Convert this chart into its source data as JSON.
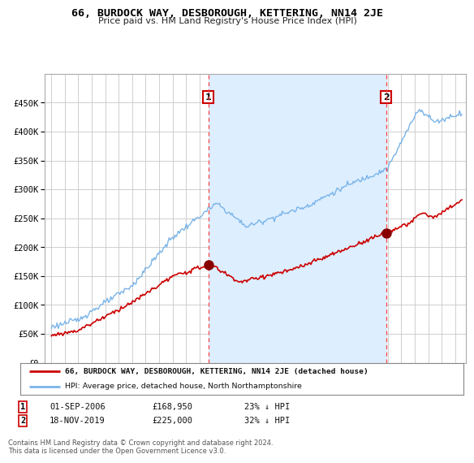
{
  "title": "66, BURDOCK WAY, DESBOROUGH, KETTERING, NN14 2JE",
  "subtitle": "Price paid vs. HM Land Registry's House Price Index (HPI)",
  "footer": "Contains HM Land Registry data © Crown copyright and database right 2024.\nThis data is licensed under the Open Government Licence v3.0.",
  "legend_line1": "66, BURDOCK WAY, DESBOROUGH, KETTERING, NN14 2JE (detached house)",
  "legend_line2": "HPI: Average price, detached house, North Northamptonshire",
  "sale1_date": "01-SEP-2006",
  "sale1_price": "£168,950",
  "sale1_info": "23% ↓ HPI",
  "sale2_date": "18-NOV-2019",
  "sale2_price": "£225,000",
  "sale2_info": "32% ↓ HPI",
  "sale1_x": 2006.67,
  "sale1_y": 168950,
  "sale2_x": 2019.88,
  "sale2_y": 225000,
  "vline1_x": 2006.67,
  "vline2_x": 2019.88,
  "hpi_color": "#7ab4e8",
  "sold_color": "#cc0000",
  "vline_color": "#ff4444",
  "shade_color": "#ddeeff",
  "background_color": "#ffffff",
  "ylim_min": 0,
  "ylim_max": 500000,
  "yticks": [
    0,
    50000,
    100000,
    150000,
    200000,
    250000,
    300000,
    350000,
    400000,
    450000
  ],
  "xlim_min": 1994.5,
  "xlim_max": 2025.8,
  "xticks": [
    1995,
    1996,
    1997,
    1998,
    1999,
    2000,
    2001,
    2002,
    2003,
    2004,
    2005,
    2006,
    2007,
    2008,
    2009,
    2010,
    2011,
    2012,
    2013,
    2014,
    2015,
    2016,
    2017,
    2018,
    2019,
    2020,
    2021,
    2022,
    2023,
    2024,
    2025
  ]
}
